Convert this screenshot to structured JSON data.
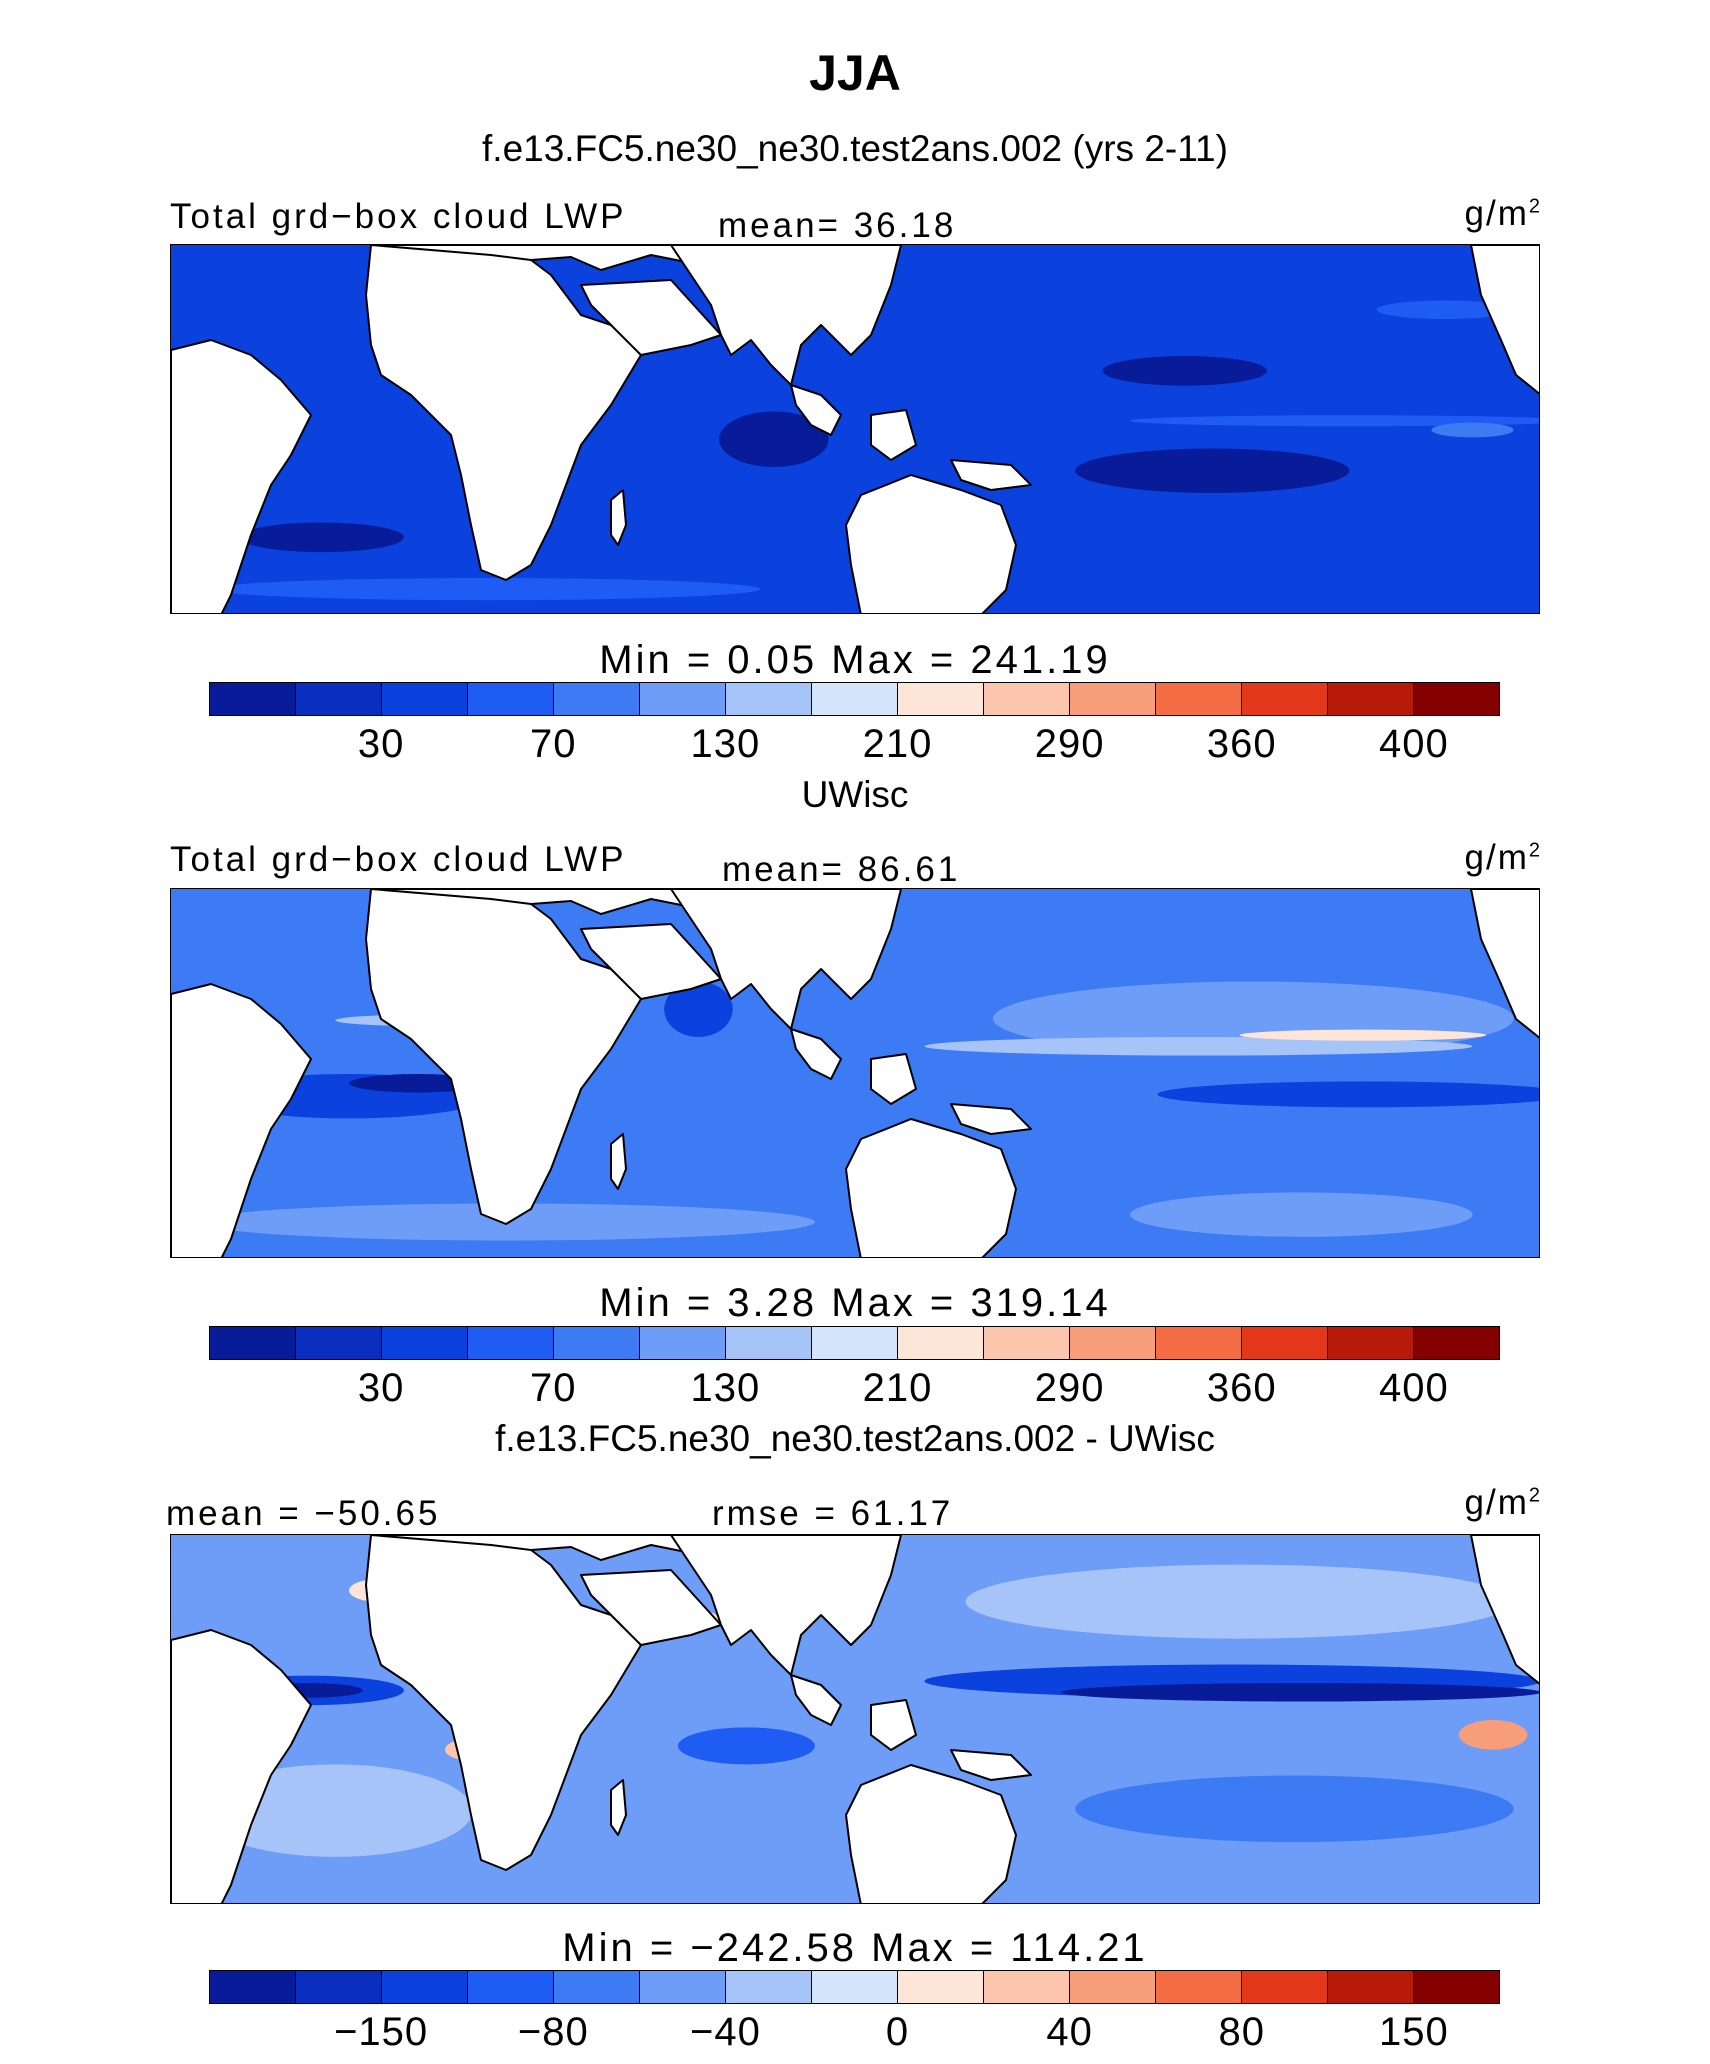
{
  "title": "JJA",
  "palette": [
    "#081c9a",
    "#0a2fbe",
    "#0b41dc",
    "#1f5cf3",
    "#3d7bf5",
    "#6e9df7",
    "#a7c4f9",
    "#d4e5fb",
    "#fde6d8",
    "#fcc6ae",
    "#f89d7a",
    "#f46d45",
    "#e3391a",
    "#b81a0a",
    "#850000"
  ],
  "land_color": "#ffffff",
  "coast_color": "#000000",
  "panels": [
    {
      "title": "f.e13.FC5.ne30_ne30.test2ans.002 (yrs 2-11)",
      "left_label": "Total grd−box cloud LWP",
      "center_label": "mean=  36.18",
      "units": "g/m",
      "units_sup": "2",
      "minmax": "Min =   0.05 Max = 241.19",
      "ticks": [
        "30",
        "70",
        "130",
        "210",
        "290",
        "360",
        "400"
      ],
      "ocean_base": "#0b41dc",
      "features": [
        {
          "c": "#081c9a",
          "f": [
            0.68,
            0.3,
            0.12,
            0.08
          ]
        },
        {
          "c": "#081c9a",
          "f": [
            0.66,
            0.55,
            0.2,
            0.12
          ]
        },
        {
          "c": "#081c9a",
          "f": [
            0.4,
            0.45,
            0.08,
            0.15
          ]
        },
        {
          "c": "#081c9a",
          "f": [
            0.05,
            0.75,
            0.12,
            0.08
          ]
        },
        {
          "c": "#1f5cf3",
          "f": [
            0.7,
            0.46,
            0.32,
            0.03
          ]
        },
        {
          "c": "#1f5cf3",
          "f": [
            0.03,
            0.9,
            0.4,
            0.06
          ]
        },
        {
          "c": "#1f5cf3",
          "f": [
            0.88,
            0.15,
            0.1,
            0.05
          ]
        },
        {
          "c": "#3d7bf5",
          "f": [
            0.92,
            0.48,
            0.06,
            0.04
          ]
        }
      ]
    },
    {
      "title": "UWisc",
      "left_label": "Total grd−box cloud LWP",
      "center_label": "mean=  86.61",
      "units": "g/m",
      "units_sup": "2",
      "minmax": "Min =   3.28 Max = 319.14",
      "ticks": [
        "30",
        "70",
        "130",
        "210",
        "290",
        "360",
        "400"
      ],
      "ocean_base": "#3d7bf5",
      "features": [
        {
          "c": "#6e9df7",
          "f": [
            0.6,
            0.25,
            0.38,
            0.2
          ]
        },
        {
          "c": "#6e9df7",
          "f": [
            0.02,
            0.85,
            0.45,
            0.1
          ]
        },
        {
          "c": "#6e9df7",
          "f": [
            0.7,
            0.82,
            0.25,
            0.12
          ]
        },
        {
          "c": "#0b41dc",
          "f": [
            0.03,
            0.5,
            0.2,
            0.12
          ]
        },
        {
          "c": "#0b41dc",
          "f": [
            0.72,
            0.52,
            0.3,
            0.07
          ]
        },
        {
          "c": "#0b41dc",
          "f": [
            0.36,
            0.25,
            0.05,
            0.15
          ]
        },
        {
          "c": "#081c9a",
          "f": [
            0.13,
            0.5,
            0.1,
            0.05
          ]
        },
        {
          "c": "#a7c4f9",
          "f": [
            0.55,
            0.4,
            0.4,
            0.05
          ]
        },
        {
          "c": "#fde6d8",
          "f": [
            0.78,
            0.38,
            0.18,
            0.03
          ]
        },
        {
          "c": "#a7c4f9",
          "f": [
            0.12,
            0.34,
            0.12,
            0.03
          ]
        }
      ]
    },
    {
      "title": "f.e13.FC5.ne30_ne30.test2ans.002 - UWisc",
      "left_label": "mean = −50.65",
      "center_label": "rmse =  61.17",
      "units": "g/m",
      "units_sup": "2",
      "minmax": "Min = −242.58 Max = 114.21",
      "ticks": [
        "−150",
        "−80",
        "−40",
        "0",
        "40",
        "80",
        "150"
      ],
      "ocean_base": "#6e9df7",
      "features": [
        {
          "c": "#a7c4f9",
          "f": [
            0.58,
            0.08,
            0.4,
            0.2
          ]
        },
        {
          "c": "#a7c4f9",
          "f": [
            0.02,
            0.62,
            0.2,
            0.25
          ]
        },
        {
          "c": "#0b41dc",
          "f": [
            0.55,
            0.35,
            0.45,
            0.09
          ]
        },
        {
          "c": "#081c9a",
          "f": [
            0.65,
            0.4,
            0.35,
            0.05
          ]
        },
        {
          "c": "#0b41dc",
          "f": [
            0.03,
            0.38,
            0.14,
            0.08
          ]
        },
        {
          "c": "#081c9a",
          "f": [
            0.06,
            0.4,
            0.08,
            0.04
          ]
        },
        {
          "c": "#1f5cf3",
          "f": [
            0.37,
            0.52,
            0.1,
            0.1
          ]
        },
        {
          "c": "#3d7bf5",
          "f": [
            0.66,
            0.65,
            0.32,
            0.18
          ]
        },
        {
          "c": "#f89d7a",
          "f": [
            0.94,
            0.5,
            0.05,
            0.08
          ]
        },
        {
          "c": "#fcc6ae",
          "f": [
            0.2,
            0.55,
            0.04,
            0.06
          ]
        },
        {
          "c": "#fde6d8",
          "f": [
            0.13,
            0.12,
            0.04,
            0.06
          ]
        },
        {
          "c": "#fde6d8",
          "f": [
            0.36,
            0.2,
            0.04,
            0.06
          ]
        }
      ]
    }
  ]
}
